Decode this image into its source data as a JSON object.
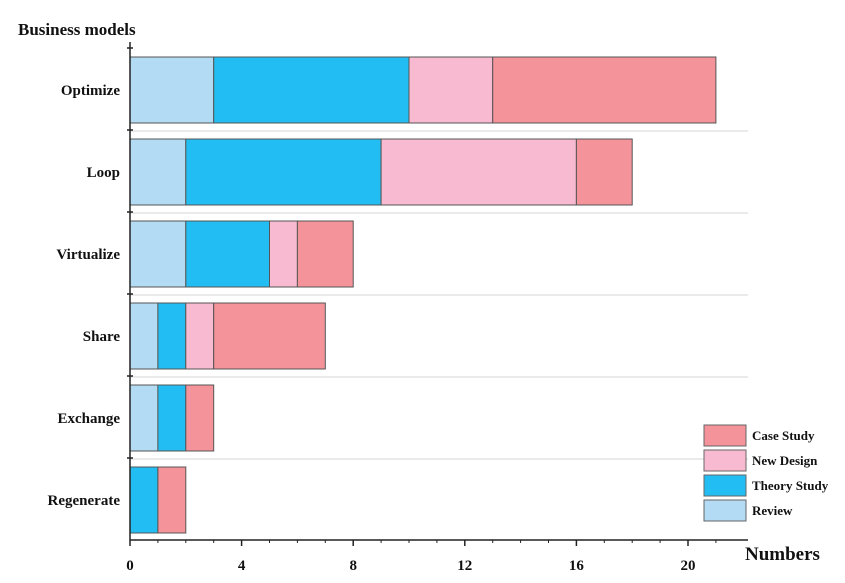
{
  "chart_data": {
    "type": "bar",
    "orientation": "horizontal",
    "stacked": true,
    "title": "",
    "ylabel": "Business models",
    "xlabel": "Numbers",
    "categories": [
      "Optimize",
      "Loop",
      "Virtualize",
      "Share",
      "Exchange",
      "Regenerate"
    ],
    "series": [
      {
        "name": "Review",
        "color": "#b3dcf4",
        "values": [
          3,
          2,
          2,
          1,
          1,
          0
        ]
      },
      {
        "name": "Theory Study",
        "color": "#22bdf2",
        "values": [
          7,
          7,
          3,
          1,
          1,
          1
        ]
      },
      {
        "name": "New Design",
        "color": "#f8bad0",
        "values": [
          3,
          7,
          1,
          1,
          0,
          0
        ]
      },
      {
        "name": "Case Study",
        "color": "#f4939a",
        "values": [
          8,
          2,
          2,
          4,
          1,
          1
        ]
      }
    ],
    "legend_order": [
      "Case Study",
      "New Design",
      "Theory Study",
      "Review"
    ],
    "xticks": [
      0,
      4,
      8,
      12,
      16,
      20
    ],
    "xlim": [
      0,
      22
    ],
    "legend_position": "bottom-right",
    "grid": "horizontal separators between categories"
  }
}
